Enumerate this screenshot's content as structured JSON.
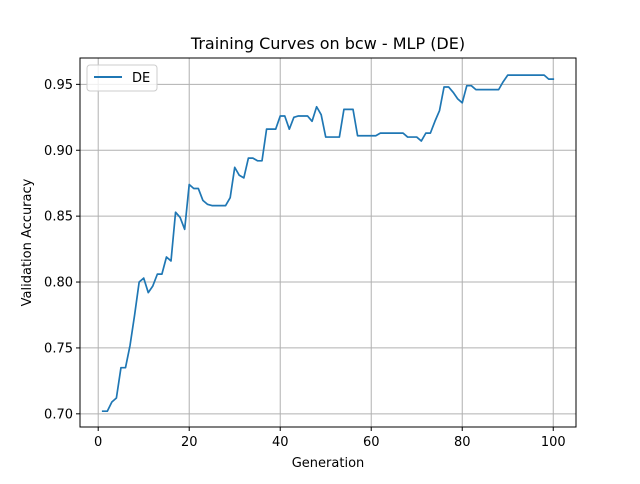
{
  "chart_data": {
    "type": "line",
    "title": "Training Curves on bcw - MLP (DE)",
    "xlabel": "Generation",
    "ylabel": "Validation Accuracy",
    "xlim": [
      -4,
      105
    ],
    "ylim": [
      0.69,
      0.97
    ],
    "xticks": [
      0,
      20,
      40,
      60,
      80,
      100
    ],
    "xtick_labels": [
      "0",
      "20",
      "40",
      "60",
      "80",
      "100"
    ],
    "yticks": [
      0.7,
      0.75,
      0.8,
      0.85,
      0.9,
      0.95
    ],
    "ytick_labels": [
      "0.70",
      "0.75",
      "0.80",
      "0.85",
      "0.90",
      "0.95"
    ],
    "grid": true,
    "legend_position": "top-left",
    "series": [
      {
        "name": "DE",
        "color": "#1f77b4",
        "x": [
          1,
          2,
          3,
          4,
          5,
          6,
          7,
          8,
          9,
          10,
          11,
          12,
          13,
          14,
          15,
          16,
          17,
          18,
          19,
          20,
          21,
          22,
          23,
          24,
          25,
          26,
          27,
          28,
          29,
          30,
          31,
          32,
          33,
          34,
          35,
          36,
          37,
          38,
          39,
          40,
          41,
          42,
          43,
          44,
          45,
          46,
          47,
          48,
          49,
          50,
          51,
          52,
          53,
          54,
          55,
          56,
          57,
          58,
          59,
          60,
          61,
          62,
          63,
          64,
          65,
          66,
          67,
          68,
          69,
          70,
          71,
          72,
          73,
          74,
          75,
          76,
          77,
          78,
          79,
          80,
          81,
          82,
          83,
          84,
          85,
          86,
          87,
          88,
          89,
          90,
          91,
          92,
          93,
          94,
          95,
          96,
          97,
          98,
          99,
          100
        ],
        "y": [
          0.702,
          0.702,
          0.709,
          0.712,
          0.735,
          0.735,
          0.752,
          0.775,
          0.8,
          0.803,
          0.792,
          0.797,
          0.806,
          0.806,
          0.819,
          0.816,
          0.853,
          0.849,
          0.84,
          0.874,
          0.871,
          0.871,
          0.862,
          0.859,
          0.858,
          0.858,
          0.858,
          0.858,
          0.864,
          0.887,
          0.881,
          0.879,
          0.894,
          0.894,
          0.892,
          0.892,
          0.916,
          0.916,
          0.916,
          0.926,
          0.926,
          0.916,
          0.925,
          0.926,
          0.926,
          0.926,
          0.922,
          0.933,
          0.927,
          0.91,
          0.91,
          0.91,
          0.91,
          0.931,
          0.931,
          0.931,
          0.911,
          0.911,
          0.911,
          0.911,
          0.911,
          0.913,
          0.913,
          0.913,
          0.913,
          0.913,
          0.913,
          0.91,
          0.91,
          0.91,
          0.907,
          0.913,
          0.913,
          0.922,
          0.93,
          0.948,
          0.948,
          0.944,
          0.939,
          0.936,
          0.949,
          0.949,
          0.946,
          0.946,
          0.946,
          0.946,
          0.946,
          0.946,
          0.952,
          0.957,
          0.957,
          0.957,
          0.957,
          0.957,
          0.957,
          0.957,
          0.957,
          0.957,
          0.954,
          0.954
        ]
      }
    ]
  }
}
